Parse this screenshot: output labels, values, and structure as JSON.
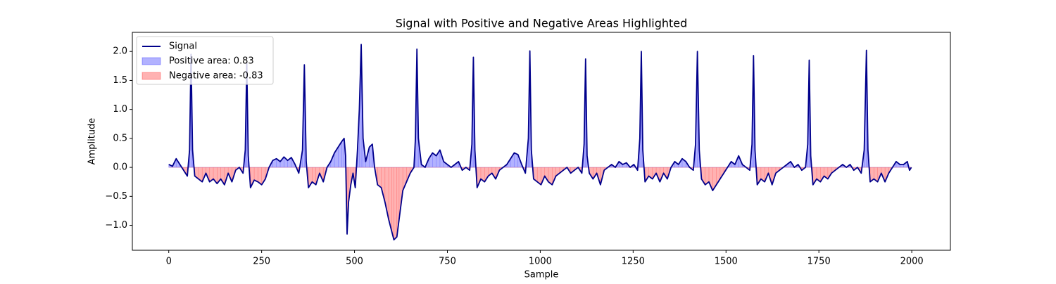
{
  "chart_data": {
    "type": "line",
    "title": "Signal with Positive and Negative Areas Highlighted",
    "x_label": "Sample",
    "y_label": "Amplitude",
    "x": [
      0,
      10,
      20,
      30,
      40,
      50,
      56,
      60,
      64,
      70,
      80,
      90,
      100,
      110,
      120,
      130,
      140,
      150,
      160,
      170,
      180,
      190,
      200,
      206,
      210,
      214,
      220,
      230,
      240,
      250,
      260,
      270,
      280,
      290,
      300,
      310,
      320,
      330,
      340,
      350,
      360,
      365,
      370,
      376,
      386,
      396,
      406,
      416,
      426,
      436,
      446,
      456,
      466,
      472,
      476,
      480,
      484,
      490,
      496,
      502,
      508,
      513,
      518,
      523,
      530,
      540,
      548,
      554,
      562,
      572,
      582,
      592,
      600,
      606,
      614,
      620,
      630,
      640,
      650,
      660,
      664,
      668,
      672,
      680,
      690,
      700,
      710,
      720,
      730,
      740,
      750,
      760,
      770,
      780,
      790,
      800,
      810,
      816,
      820,
      824,
      830,
      840,
      850,
      860,
      870,
      880,
      890,
      900,
      910,
      920,
      930,
      940,
      950,
      960,
      968,
      972,
      976,
      982,
      992,
      1002,
      1012,
      1022,
      1032,
      1042,
      1052,
      1062,
      1072,
      1082,
      1092,
      1102,
      1112,
      1118,
      1122,
      1126,
      1132,
      1142,
      1152,
      1162,
      1172,
      1182,
      1192,
      1202,
      1212,
      1222,
      1232,
      1242,
      1252,
      1262,
      1268,
      1272,
      1276,
      1282,
      1292,
      1302,
      1312,
      1322,
      1332,
      1342,
      1352,
      1362,
      1372,
      1382,
      1392,
      1402,
      1412,
      1418,
      1423,
      1428,
      1434,
      1444,
      1454,
      1464,
      1474,
      1484,
      1494,
      1504,
      1514,
      1524,
      1534,
      1544,
      1554,
      1564,
      1570,
      1574,
      1578,
      1584,
      1594,
      1604,
      1614,
      1624,
      1634,
      1644,
      1654,
      1664,
      1674,
      1684,
      1694,
      1704,
      1714,
      1720,
      1724,
      1728,
      1734,
      1744,
      1754,
      1764,
      1774,
      1784,
      1794,
      1804,
      1814,
      1824,
      1834,
      1844,
      1854,
      1864,
      1872,
      1878,
      1882,
      1888,
      1898,
      1908,
      1918,
      1928,
      1938,
      1948,
      1958,
      1968,
      1978,
      1988,
      1994,
      1999
    ],
    "series": [
      {
        "name": "Signal",
        "color": "#00008b",
        "values": [
          0.05,
          0.02,
          0.15,
          0.05,
          -0.05,
          -0.15,
          0.3,
          1.95,
          0.3,
          -0.15,
          -0.2,
          -0.25,
          -0.1,
          -0.25,
          -0.2,
          -0.28,
          -0.2,
          -0.3,
          -0.1,
          -0.25,
          -0.05,
          0.0,
          -0.1,
          0.3,
          1.8,
          0.2,
          -0.35,
          -0.22,
          -0.25,
          -0.3,
          -0.2,
          0.0,
          0.12,
          0.15,
          0.1,
          0.18,
          0.12,
          0.17,
          0.05,
          -0.1,
          0.3,
          1.77,
          0.1,
          -0.35,
          -0.25,
          -0.3,
          -0.1,
          -0.25,
          0.0,
          0.1,
          0.25,
          0.35,
          0.45,
          0.5,
          0.2,
          -1.15,
          -0.6,
          -0.3,
          -0.1,
          -0.35,
          0.3,
          1.0,
          2.12,
          0.5,
          0.1,
          0.35,
          0.4,
          0.0,
          -0.3,
          -0.35,
          -0.6,
          -0.9,
          -1.1,
          -1.25,
          -1.2,
          -0.9,
          -0.4,
          -0.25,
          -0.1,
          0.0,
          0.5,
          2.04,
          0.5,
          0.05,
          0.0,
          0.15,
          0.25,
          0.2,
          0.3,
          0.1,
          0.05,
          0.0,
          0.05,
          0.1,
          -0.05,
          0.0,
          -0.05,
          0.4,
          1.9,
          0.3,
          -0.35,
          -0.2,
          -0.25,
          -0.15,
          -0.1,
          -0.2,
          -0.05,
          0.0,
          0.05,
          0.15,
          0.25,
          0.22,
          0.05,
          -0.1,
          0.5,
          2.01,
          0.3,
          -0.2,
          -0.25,
          -0.3,
          -0.15,
          -0.25,
          -0.3,
          -0.15,
          -0.1,
          -0.05,
          0.0,
          -0.1,
          -0.05,
          0.0,
          -0.1,
          0.4,
          1.87,
          0.2,
          -0.1,
          -0.2,
          -0.1,
          -0.3,
          -0.05,
          0.0,
          0.05,
          0.0,
          0.1,
          0.05,
          0.08,
          0.0,
          0.05,
          -0.05,
          0.5,
          2.0,
          0.3,
          -0.25,
          -0.15,
          -0.2,
          -0.1,
          -0.25,
          -0.1,
          -0.2,
          0.0,
          0.1,
          0.05,
          0.15,
          0.1,
          0.0,
          -0.05,
          0.4,
          2.0,
          0.3,
          -0.2,
          -0.3,
          -0.25,
          -0.4,
          -0.3,
          -0.2,
          -0.1,
          0.0,
          0.1,
          0.05,
          0.2,
          0.05,
          0.0,
          -0.05,
          0.4,
          1.93,
          0.3,
          -0.3,
          -0.2,
          -0.25,
          -0.1,
          -0.3,
          -0.1,
          -0.05,
          0.0,
          0.05,
          0.1,
          0.0,
          0.05,
          -0.05,
          0.0,
          0.4,
          1.85,
          0.2,
          -0.3,
          -0.2,
          -0.25,
          -0.15,
          -0.2,
          -0.1,
          -0.05,
          0.0,
          0.05,
          0.0,
          0.05,
          -0.05,
          0.0,
          -0.1,
          0.3,
          2.02,
          0.3,
          -0.25,
          -0.2,
          -0.25,
          -0.1,
          -0.25,
          -0.1,
          0.0,
          0.1,
          0.05,
          0.05,
          0.1,
          -0.05,
          0.0
        ]
      }
    ],
    "areas": [
      {
        "name": "Positive area: 0.83",
        "color": "#0000ff"
      },
      {
        "name": "Negative area: -0.83",
        "color": "#ff0000"
      }
    ],
    "xlim": [
      -98,
      2104
    ],
    "ylim": [
      -1.43,
      2.33
    ],
    "xticks": [
      0,
      250,
      500,
      750,
      1000,
      1250,
      1500,
      1750,
      2000
    ],
    "yticks": [
      {
        "value": -1,
        "label": "−1.0"
      },
      {
        "value": -0.5,
        "label": "−0.5"
      },
      {
        "value": 0,
        "label": "0.0"
      },
      0.5,
      {
        "value": 1,
        "label": "1.0"
      },
      1.5,
      {
        "value": 2,
        "label": "2.0"
      }
    ],
    "legend": "upper left"
  }
}
